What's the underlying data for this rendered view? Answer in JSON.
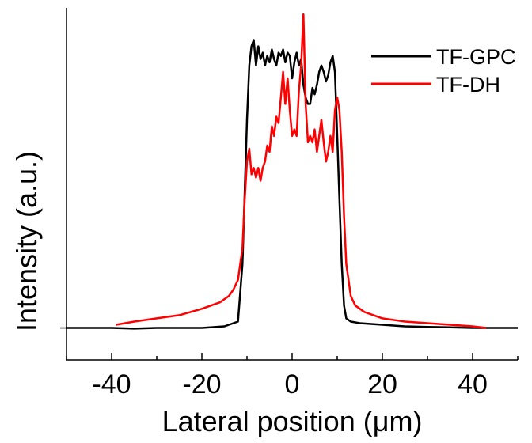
{
  "chart_data": {
    "type": "line",
    "title": "",
    "xlabel": "Lateral position (μm)",
    "ylabel": "Intensity (a.u.)",
    "xlim": [
      -50,
      50
    ],
    "ylim": [
      -0.1,
      1.0
    ],
    "x_ticks": [
      -40,
      -20,
      0,
      20,
      40
    ],
    "x_tick_labels": [
      "-40",
      "-20",
      "0",
      "20",
      "40"
    ],
    "grid": false,
    "legend": "top-right",
    "series": [
      {
        "name": "TF-GPC",
        "color": "#000000",
        "x": [
          -50,
          -45,
          -40,
          -35,
          -30,
          -25,
          -20,
          -15,
          -12,
          -11,
          -10,
          -9.5,
          -9,
          -8.5,
          -8,
          -7.5,
          -7,
          -6.5,
          -6,
          -5.5,
          -5,
          -4.5,
          -4,
          -3.5,
          -3,
          -2.5,
          -2,
          -1.5,
          -1,
          -0.5,
          0,
          0.5,
          1,
          1.5,
          2,
          2.5,
          3,
          3.5,
          4,
          4.5,
          5,
          5.5,
          6,
          6.5,
          7,
          7.5,
          8,
          8.5,
          9,
          9.5,
          10,
          10.5,
          11,
          11.5,
          12,
          13,
          15,
          20,
          25,
          30,
          35,
          40,
          45,
          50
        ],
        "y": [
          0.0,
          0.0,
          0.0,
          -0.002,
          0.0,
          0.0,
          0.0,
          0.005,
          0.02,
          0.2,
          0.65,
          0.82,
          0.88,
          0.9,
          0.82,
          0.88,
          0.84,
          0.86,
          0.82,
          0.85,
          0.83,
          0.87,
          0.84,
          0.82,
          0.86,
          0.85,
          0.87,
          0.83,
          0.86,
          0.85,
          0.78,
          0.83,
          0.86,
          0.82,
          0.84,
          0.76,
          0.72,
          0.7,
          0.7,
          0.75,
          0.73,
          0.76,
          0.8,
          0.82,
          0.8,
          0.77,
          0.79,
          0.83,
          0.85,
          0.8,
          0.6,
          0.4,
          0.2,
          0.07,
          0.03,
          0.02,
          0.015,
          0.01,
          0.005,
          0.003,
          0.002,
          0.0,
          0.0,
          0.0
        ]
      },
      {
        "name": "TF-DH",
        "color": "#ff0000",
        "x": [
          -39,
          -35,
          -30,
          -25,
          -20,
          -16,
          -14,
          -13,
          -12,
          -11,
          -10.5,
          -10,
          -9.5,
          -9,
          -8.5,
          -8,
          -7.5,
          -7,
          -6.5,
          -6,
          -5.5,
          -5,
          -4.5,
          -4,
          -3.5,
          -3,
          -2.5,
          -2,
          -1.5,
          -1,
          -0.5,
          0,
          0.5,
          1,
          1.5,
          2,
          2.5,
          3,
          3.5,
          4,
          4.5,
          5,
          5.5,
          6,
          6.5,
          7,
          7.5,
          8,
          8.5,
          9,
          9.5,
          10,
          10.5,
          11,
          11.5,
          12,
          12.5,
          13,
          14,
          16,
          20,
          25,
          30,
          35,
          40,
          43
        ],
        "y": [
          0.01,
          0.02,
          0.03,
          0.04,
          0.06,
          0.08,
          0.1,
          0.12,
          0.15,
          0.25,
          0.4,
          0.52,
          0.56,
          0.48,
          0.5,
          0.47,
          0.5,
          0.46,
          0.5,
          0.52,
          0.57,
          0.55,
          0.63,
          0.6,
          0.66,
          0.64,
          0.72,
          0.8,
          0.7,
          0.78,
          0.68,
          0.6,
          0.62,
          0.6,
          0.74,
          0.82,
          0.98,
          0.7,
          0.58,
          0.6,
          0.58,
          0.62,
          0.55,
          0.6,
          0.65,
          0.58,
          0.52,
          0.55,
          0.6,
          0.55,
          0.68,
          0.72,
          0.68,
          0.55,
          0.35,
          0.2,
          0.15,
          0.1,
          0.07,
          0.05,
          0.03,
          0.02,
          0.015,
          0.01,
          0.005,
          0.0
        ]
      }
    ]
  }
}
